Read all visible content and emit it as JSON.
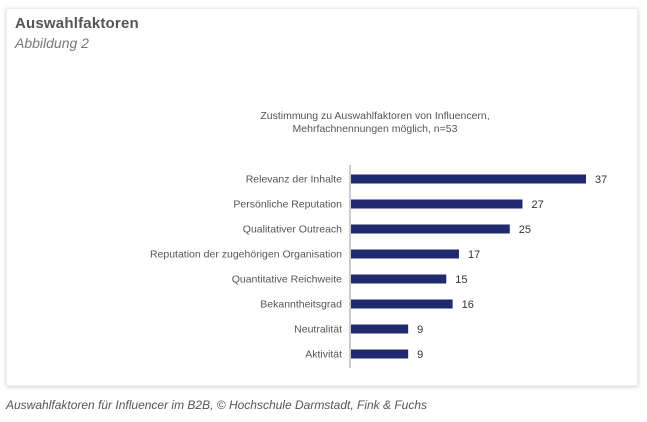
{
  "card": {
    "heading": "Auswahlfaktoren",
    "subheading": "Abbildung 2"
  },
  "caption": "Auswahlfaktoren für Influencer im B2B, © Hochschule Darmstadt, Fink & Fuchs",
  "colors": {
    "bar": "#1f2a6e",
    "axis": "#999999",
    "text": "#555555"
  },
  "chart_data": {
    "type": "bar",
    "orientation": "horizontal",
    "title_lines": [
      "Zustimmung zu Auswahlfaktoren von Influencern,",
      "Mehrfachnennungen möglich, n=53"
    ],
    "categories": [
      "Relevanz der Inhalte",
      "Persönliche Reputation",
      "Qualitativer Outreach",
      "Reputation der zugehörigen Organisation",
      "Quantitative Reichweite",
      "Bekanntheitsgrad",
      "Neutralität",
      "Aktivität"
    ],
    "values": [
      37,
      27,
      25,
      17,
      15,
      16,
      9,
      9
    ],
    "xlim": [
      0,
      37
    ],
    "data_labels": true,
    "grid": false,
    "legend": "none"
  }
}
